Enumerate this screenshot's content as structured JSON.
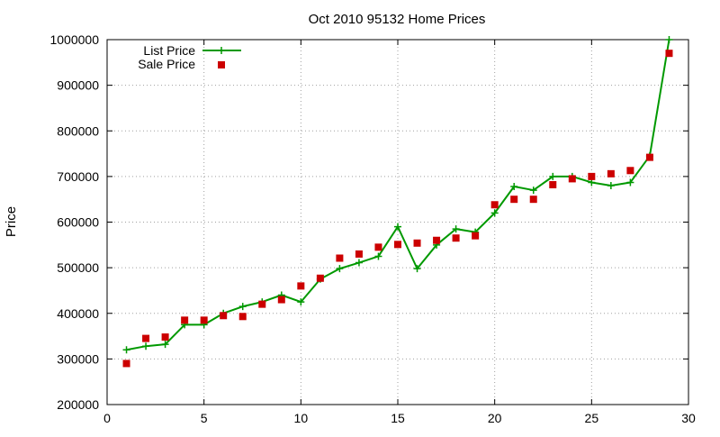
{
  "chart_data": {
    "type": "line",
    "title": "Oct 2010 95132 Home Prices",
    "xlabel": "",
    "ylabel": "Price",
    "xlim": [
      0,
      30
    ],
    "ylim": [
      200000,
      1000000
    ],
    "x_ticks": [
      "0",
      "5",
      "10",
      "15",
      "20",
      "25",
      "30"
    ],
    "y_ticks": [
      "200000",
      "300000",
      "400000",
      "500000",
      "600000",
      "700000",
      "800000",
      "900000",
      "1000000"
    ],
    "grid": true,
    "legend_position": "top-left",
    "series": [
      {
        "name": "List Price",
        "style": "line+cross",
        "color": "#009900",
        "x": [
          1,
          2,
          3,
          4,
          5,
          6,
          7,
          8,
          9,
          10,
          11,
          12,
          13,
          14,
          15,
          16,
          17,
          18,
          19,
          20,
          21,
          22,
          23,
          24,
          25,
          26,
          27,
          28,
          29
        ],
        "y": [
          320000,
          328000,
          332000,
          375000,
          375000,
          400000,
          415000,
          425000,
          440000,
          425000,
          475000,
          498000,
          511000,
          525000,
          590000,
          498000,
          550000,
          585000,
          578000,
          620000,
          678000,
          670000,
          700000,
          700000,
          687000,
          680000,
          687000,
          745000,
          1000000
        ]
      },
      {
        "name": "Sale Price",
        "style": "square-marker",
        "color": "#cc0000",
        "x": [
          1,
          2,
          3,
          4,
          5,
          6,
          7,
          8,
          9,
          10,
          11,
          12,
          13,
          14,
          15,
          16,
          17,
          18,
          19,
          20,
          21,
          22,
          23,
          24,
          25,
          26,
          27,
          28,
          29
        ],
        "y": [
          290000,
          345000,
          348000,
          385000,
          385000,
          395000,
          393000,
          420000,
          430000,
          460000,
          477000,
          521000,
          530000,
          545000,
          551000,
          554000,
          560000,
          565000,
          570000,
          638000,
          650000,
          650000,
          682000,
          695000,
          700000,
          706000,
          713000,
          742000,
          970000
        ]
      }
    ]
  }
}
